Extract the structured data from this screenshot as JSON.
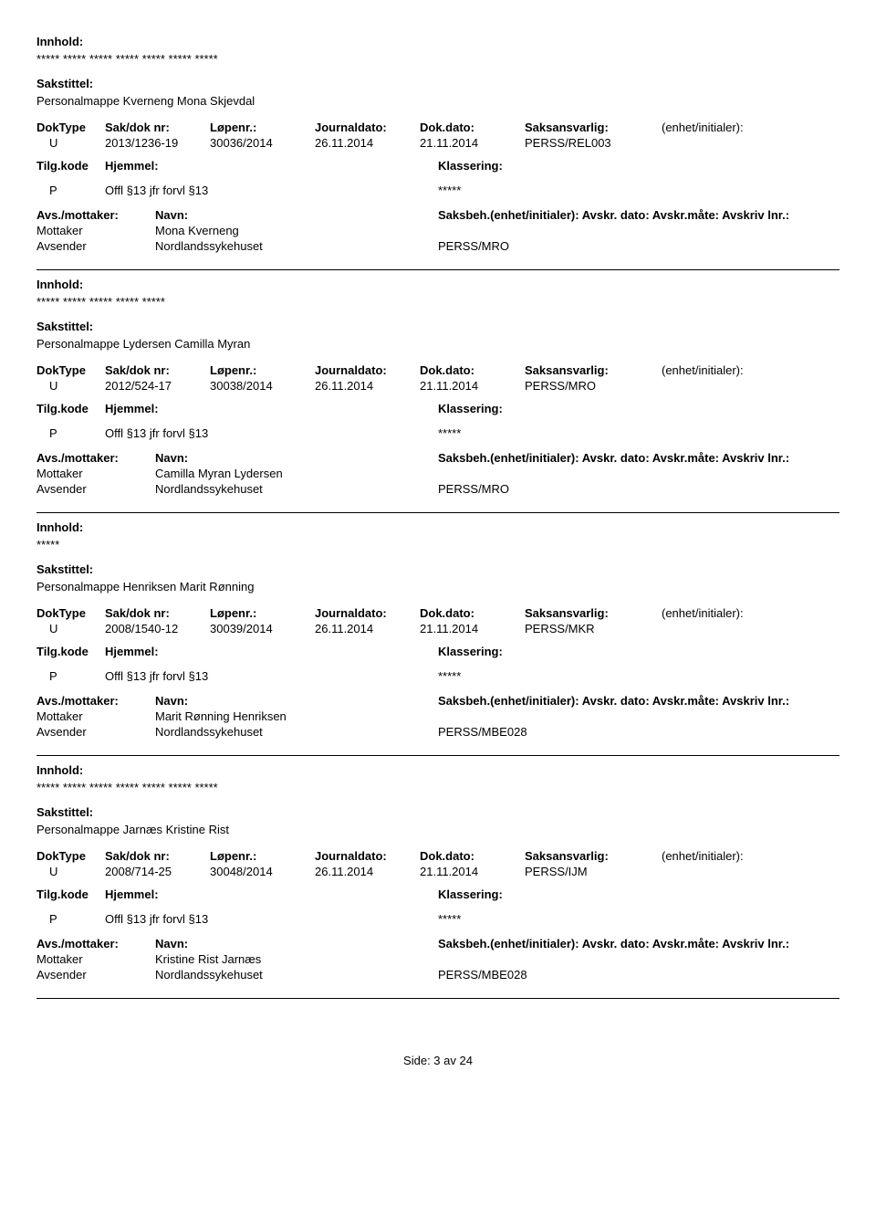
{
  "labels": {
    "innhold": "Innhold:",
    "sakstittel": "Sakstittel:",
    "doktype": "DokType",
    "sakdok": "Sak/dok nr:",
    "lopenr": "Løpenr.:",
    "journaldato": "Journaldato:",
    "dokdato": "Dok.dato:",
    "saksansvarlig": "Saksansvarlig:",
    "enhet": "(enhet/initialer):",
    "tilgkode": "Tilg.kode",
    "hjemmel": "Hjemmel:",
    "klassering": "Klassering:",
    "avsmottaker": "Avs./mottaker:",
    "navn": "Navn:",
    "saksbeh_line": "Saksbeh.(enhet/initialer): Avskr. dato:  Avskr.måte:  Avskriv lnr.:",
    "mottaker": "Mottaker",
    "avsender": "Avsender"
  },
  "records": [
    {
      "innhold": "***** ***** ***** ***** ***** ***** *****",
      "sakstittel": "Personalmappe Kverneng Mona Skjevdal",
      "doktype": "U",
      "sakdok": "2013/1236-19",
      "lopenr": "30036/2014",
      "journaldato": "26.11.2014",
      "dokdato": "21.11.2014",
      "saksansvarlig": "PERSS/REL003",
      "tilgkode": "P",
      "hjemmel": "Offl §13 jfr forvl §13",
      "klassering": "*****",
      "mottaker_navn": "Mona Kverneng",
      "avsender_navn": "Nordlandssykehuset",
      "saksbeh_kode": "PERSS/MRO"
    },
    {
      "innhold": "***** ***** ***** ***** *****",
      "sakstittel": "Personalmappe Lydersen Camilla Myran",
      "doktype": "U",
      "sakdok": "2012/524-17",
      "lopenr": "30038/2014",
      "journaldato": "26.11.2014",
      "dokdato": "21.11.2014",
      "saksansvarlig": "PERSS/MRO",
      "tilgkode": "P",
      "hjemmel": "Offl §13 jfr forvl §13",
      "klassering": "*****",
      "mottaker_navn": "Camilla Myran Lydersen",
      "avsender_navn": "Nordlandssykehuset",
      "saksbeh_kode": "PERSS/MRO"
    },
    {
      "innhold": "*****",
      "sakstittel": "Personalmappe Henriksen Marit Rønning",
      "doktype": "U",
      "sakdok": "2008/1540-12",
      "lopenr": "30039/2014",
      "journaldato": "26.11.2014",
      "dokdato": "21.11.2014",
      "saksansvarlig": "PERSS/MKR",
      "tilgkode": "P",
      "hjemmel": "Offl §13 jfr forvl §13",
      "klassering": "*****",
      "mottaker_navn": "Marit Rønning Henriksen",
      "avsender_navn": "Nordlandssykehuset",
      "saksbeh_kode": "PERSS/MBE028"
    },
    {
      "innhold": "***** ***** ***** ***** ***** ***** *****",
      "sakstittel": "Personalmappe Jarnæs Kristine Rist",
      "doktype": "U",
      "sakdok": "2008/714-25",
      "lopenr": "30048/2014",
      "journaldato": "26.11.2014",
      "dokdato": "21.11.2014",
      "saksansvarlig": "PERSS/IJM",
      "tilgkode": "P",
      "hjemmel": "Offl §13 jfr forvl §13",
      "klassering": "*****",
      "mottaker_navn": "Kristine Rist Jarnæs",
      "avsender_navn": "Nordlandssykehuset",
      "saksbeh_kode": "PERSS/MBE028"
    }
  ],
  "footer": "Side: 3 av 24"
}
